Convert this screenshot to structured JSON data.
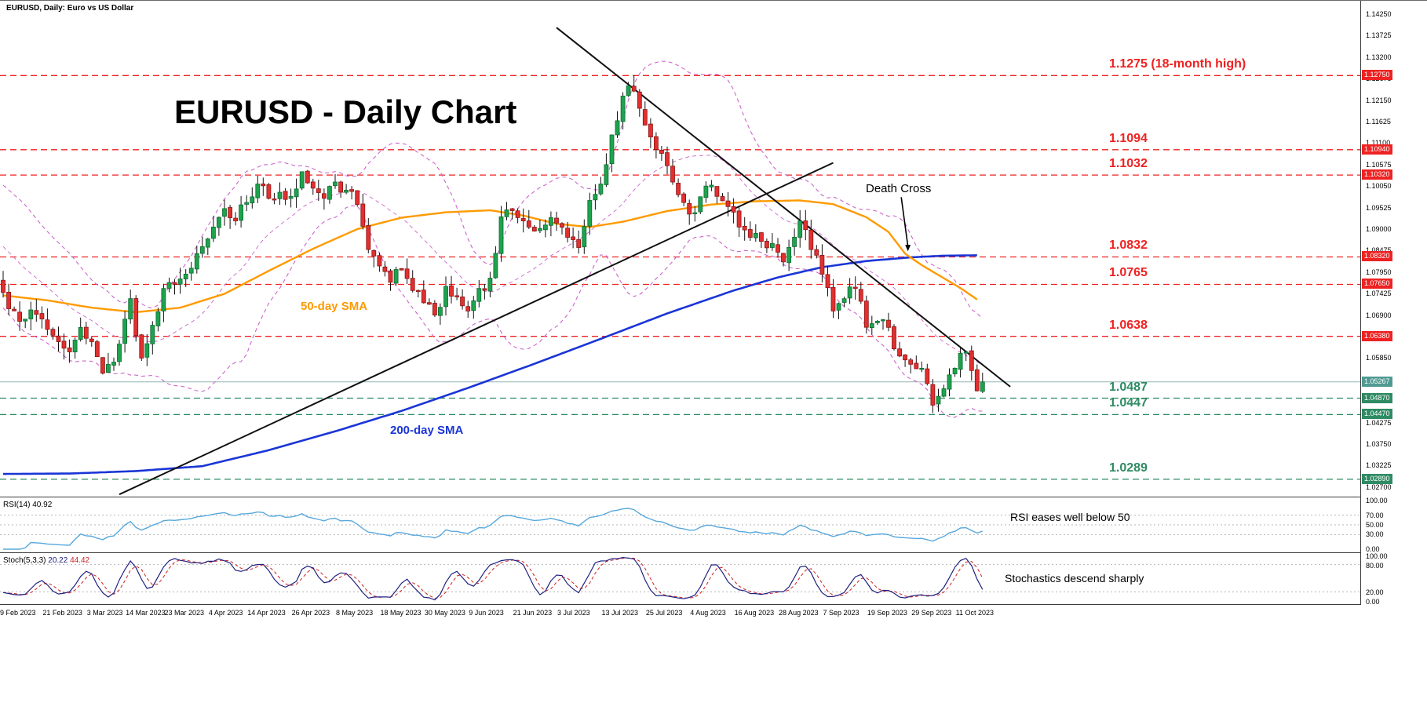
{
  "window": {
    "symbol_label": "EURUSD, Daily:  Euro vs US Dollar"
  },
  "colors": {
    "up": "#1fa24d",
    "up_border": "#0b6b31",
    "down": "#e03030",
    "down_border": "#8f1111",
    "wick": "#111111",
    "bollinger": "#cc66cc",
    "sma50": "#ff9a00",
    "sma200": "#1a35d6",
    "resistance": "#ee2222",
    "support": "#2e8b63",
    "current_line": "#8fb5b2",
    "current_badge": "#4f9a93",
    "trendline": "#101010",
    "rsi_line": "#58a8dc",
    "stoch_k": "#202080",
    "stoch_d": "#cc2222",
    "grid": "#b5b5b5",
    "panel_border": "#3c3c3c"
  },
  "chart_data": {
    "type": "candlestick",
    "symbol": "EURUSD",
    "timeframe": "Daily",
    "title_display": "EURUSD - Daily Chart",
    "sma50_label": "50-day SMA",
    "sma200_label": "200-day SMA",
    "seed": 7,
    "price_axis": {
      "min": 1.02466,
      "max": 1.14576,
      "ticks": [
        {
          "v": 1.1425,
          "t": "1.14250"
        },
        {
          "v": 1.13725,
          "t": "1.13725"
        },
        {
          "v": 1.132,
          "t": "1.13200"
        },
        {
          "v": 1.12675,
          "t": "1.12675"
        },
        {
          "v": 1.1215,
          "t": "1.12150"
        },
        {
          "v": 1.11625,
          "t": "1.11625"
        },
        {
          "v": 1.111,
          "t": "1.11100"
        },
        {
          "v": 1.10575,
          "t": "1.10575"
        },
        {
          "v": 1.1005,
          "t": "1.10050"
        },
        {
          "v": 1.09525,
          "t": "1.09525"
        },
        {
          "v": 1.09,
          "t": "1.09000"
        },
        {
          "v": 1.08475,
          "t": "1.08475"
        },
        {
          "v": 1.0795,
          "t": "1.07950"
        },
        {
          "v": 1.07425,
          "t": "1.07425"
        },
        {
          "v": 1.069,
          "t": "1.06900"
        },
        {
          "v": 1.06375,
          "t": "1.06375"
        },
        {
          "v": 1.0585,
          "t": "1.05850"
        },
        {
          "v": 1.05325,
          "t": "1.05325"
        },
        {
          "v": 1.048,
          "t": "1.04800"
        },
        {
          "v": 1.04275,
          "t": "1.04275"
        },
        {
          "v": 1.0375,
          "t": "1.03750"
        },
        {
          "v": 1.03225,
          "t": "1.03225"
        },
        {
          "v": 1.027,
          "t": "1.02700"
        }
      ]
    },
    "date_axis": [
      {
        "label": "9 Feb 2023",
        "day": 0
      },
      {
        "label": "21 Feb 2023",
        "day": 8
      },
      {
        "label": "3 Mar 2023",
        "day": 16
      },
      {
        "label": "14 Mar 2023",
        "day": 23
      },
      {
        "label": "23 Mar 2023",
        "day": 30
      },
      {
        "label": "4 Apr 2023",
        "day": 38
      },
      {
        "label": "14 Apr 2023",
        "day": 45
      },
      {
        "label": "26 Apr 2023",
        "day": 53
      },
      {
        "label": "8 May 2023",
        "day": 61
      },
      {
        "label": "18 May 2023",
        "day": 69
      },
      {
        "label": "30 May 2023",
        "day": 77
      },
      {
        "label": "9 Jun 2023",
        "day": 85
      },
      {
        "label": "21 Jun 2023",
        "day": 93
      },
      {
        "label": "3 Jul 2023",
        "day": 101
      },
      {
        "label": "13 Jul 2023",
        "day": 109
      },
      {
        "label": "25 Jul 2023",
        "day": 117
      },
      {
        "label": "4 Aug 2023",
        "day": 125
      },
      {
        "label": "16 Aug 2023",
        "day": 133
      },
      {
        "label": "28 Aug 2023",
        "day": 141
      },
      {
        "label": "7 Sep 2023",
        "day": 149
      },
      {
        "label": "19 Sep 2023",
        "day": 157
      },
      {
        "label": "29 Sep 2023",
        "day": 165
      },
      {
        "label": "11 Oct 2023",
        "day": 173
      }
    ],
    "close_waypoints": [
      [
        0,
        1.0745
      ],
      [
        2,
        1.07
      ],
      [
        4,
        1.068
      ],
      [
        6,
        1.0692
      ],
      [
        8,
        1.0655
      ],
      [
        10,
        1.0625
      ],
      [
        12,
        1.06
      ],
      [
        14,
        1.066
      ],
      [
        16,
        1.0625
      ],
      [
        18,
        1.0548
      ],
      [
        20,
        1.0575
      ],
      [
        22,
        1.068
      ],
      [
        23,
        1.073
      ],
      [
        24,
        1.064
      ],
      [
        25,
        1.0585
      ],
      [
        26,
        1.062
      ],
      [
        27,
        1.0665
      ],
      [
        29,
        1.0755
      ],
      [
        31,
        1.0765
      ],
      [
        33,
        1.079
      ],
      [
        35,
        1.084
      ],
      [
        38,
        1.0905
      ],
      [
        40,
        1.095
      ],
      [
        42,
        1.092
      ],
      [
        44,
        1.0965
      ],
      [
        46,
        1.101
      ],
      [
        48,
        1.0975
      ],
      [
        50,
        1.099
      ],
      [
        52,
        1.098
      ],
      [
        54,
        1.104
      ],
      [
        56,
        1.1
      ],
      [
        58,
        1.0975
      ],
      [
        60,
        1.1015
      ],
      [
        62,
        1.0995
      ],
      [
        64,
        1.096
      ],
      [
        66,
        1.085
      ],
      [
        68,
        1.081
      ],
      [
        70,
        1.077
      ],
      [
        72,
        1.08
      ],
      [
        74,
        1.075
      ],
      [
        76,
        1.072
      ],
      [
        78,
        1.069
      ],
      [
        80,
        1.076
      ],
      [
        82,
        1.0735
      ],
      [
        84,
        1.07
      ],
      [
        86,
        1.0755
      ],
      [
        88,
        1.078
      ],
      [
        90,
        1.093
      ],
      [
        92,
        1.0945
      ],
      [
        94,
        1.092
      ],
      [
        96,
        1.0895
      ],
      [
        98,
        1.091
      ],
      [
        100,
        1.0915
      ],
      [
        102,
        1.088
      ],
      [
        104,
        1.0855
      ],
      [
        106,
        1.097
      ],
      [
        108,
        1.101
      ],
      [
        110,
        1.113
      ],
      [
        112,
        1.1225
      ],
      [
        113,
        1.125
      ],
      [
        115,
        1.1195
      ],
      [
        117,
        1.1125
      ],
      [
        119,
        1.1085
      ],
      [
        121,
        1.1015
      ],
      [
        123,
        1.0965
      ],
      [
        125,
        1.094
      ],
      [
        127,
        1.1005
      ],
      [
        129,
        1.098
      ],
      [
        131,
        1.0955
      ],
      [
        133,
        1.0905
      ],
      [
        135,
        1.088
      ],
      [
        137,
        1.087
      ],
      [
        139,
        1.0865
      ],
      [
        141,
        1.082
      ],
      [
        143,
        1.088
      ],
      [
        144,
        1.092
      ],
      [
        146,
        1.085
      ],
      [
        148,
        1.079
      ],
      [
        150,
        1.07
      ],
      [
        152,
        1.073
      ],
      [
        154,
        1.0755
      ],
      [
        156,
        1.066
      ],
      [
        158,
        1.0675
      ],
      [
        160,
        1.066
      ],
      [
        162,
        1.059
      ],
      [
        164,
        1.057
      ],
      [
        166,
        1.056
      ],
      [
        168,
        1.047
      ],
      [
        170,
        1.051
      ],
      [
        172,
        1.056
      ],
      [
        174,
        1.06
      ],
      [
        176,
        1.0505
      ],
      [
        177,
        1.05267
      ]
    ],
    "sma50_points": [
      [
        0,
        1.0738
      ],
      [
        8,
        1.0726
      ],
      [
        16,
        1.0708
      ],
      [
        24,
        1.0697
      ],
      [
        32,
        1.0708
      ],
      [
        40,
        1.0742
      ],
      [
        48,
        1.0798
      ],
      [
        56,
        1.0852
      ],
      [
        64,
        1.09
      ],
      [
        72,
        1.0928
      ],
      [
        80,
        1.0941
      ],
      [
        88,
        1.0946
      ],
      [
        94,
        1.0933
      ],
      [
        100,
        1.0913
      ],
      [
        106,
        1.0905
      ],
      [
        112,
        1.0918
      ],
      [
        120,
        1.0944
      ],
      [
        128,
        1.096
      ],
      [
        136,
        1.0968
      ],
      [
        144,
        1.097
      ],
      [
        150,
        1.0961
      ],
      [
        156,
        1.0929
      ],
      [
        160,
        1.0893
      ],
      [
        163,
        1.084
      ],
      [
        166,
        1.0812
      ],
      [
        170,
        1.078
      ],
      [
        173,
        1.0756
      ],
      [
        176,
        1.0728
      ]
    ],
    "sma200_points": [
      [
        0,
        1.0302
      ],
      [
        12,
        1.0303
      ],
      [
        24,
        1.0309
      ],
      [
        36,
        1.0321
      ],
      [
        48,
        1.036
      ],
      [
        60,
        1.0406
      ],
      [
        72,
        1.0456
      ],
      [
        84,
        1.0512
      ],
      [
        96,
        1.0571
      ],
      [
        108,
        1.0632
      ],
      [
        120,
        1.0694
      ],
      [
        132,
        1.075
      ],
      [
        140,
        1.0782
      ],
      [
        148,
        1.0807
      ],
      [
        156,
        1.0822
      ],
      [
        164,
        1.0831
      ],
      [
        170,
        1.0835
      ],
      [
        176,
        1.0836
      ]
    ],
    "levels": {
      "resistance": [
        {
          "price": 1.1275,
          "label": "1.1275 (18-month high)",
          "axis_label": "1.12750"
        },
        {
          "price": 1.1094,
          "label": "1.1094",
          "axis_label": "1.10940"
        },
        {
          "price": 1.1032,
          "label": "1.1032",
          "axis_label": "1.10320"
        },
        {
          "price": 1.0832,
          "label": "1.0832",
          "axis_label": "1.08320"
        },
        {
          "price": 1.0765,
          "label": "1.0765",
          "axis_label": "1.07650"
        },
        {
          "price": 1.0638,
          "label": "1.0638",
          "axis_label": "1.06380"
        }
      ],
      "support": [
        {
          "price": 1.0487,
          "label": "1.0487",
          "axis_label": "1.04870"
        },
        {
          "price": 1.0447,
          "label": "1.0447",
          "axis_label": "1.04470"
        },
        {
          "price": 1.0289,
          "label": "1.0289",
          "axis_label": "1.02890"
        }
      ]
    },
    "current_price": {
      "value": 1.05267,
      "axis_label": "1.05267"
    },
    "trendlines": [
      {
        "from": [
          21,
          1.0252
        ],
        "to": [
          150,
          1.1062
        ]
      },
      {
        "from": [
          100,
          1.1392
        ],
        "to": [
          182,
          1.0515
        ]
      }
    ],
    "annotations": {
      "death_cross": "Death Cross",
      "death_cross_arrow": {
        "from": [
          162.3,
          1.0978
        ],
        "to": [
          163.5,
          1.0846
        ]
      }
    },
    "indicators": {
      "rsi": {
        "label": "RSI(14)",
        "value": "40.92",
        "note": "RSI eases well below 50",
        "axis": [
          {
            "v": 100,
            "t": "100.00"
          },
          {
            "v": 70,
            "t": "70.00"
          },
          {
            "v": 50,
            "t": "50.00"
          },
          {
            "v": 30,
            "t": "30.00"
          },
          {
            "v": 0,
            "t": "0.00"
          }
        ],
        "gridlines": [
          70,
          50,
          30
        ]
      },
      "stoch": {
        "label": "Stoch(5,3,3)",
        "k": "20.22",
        "d": "44.42",
        "note": "Stochastics descend sharply",
        "axis": [
          {
            "v": 100,
            "t": "100.00"
          },
          {
            "v": 80,
            "t": "80.00"
          },
          {
            "v": 20,
            "t": "20.00"
          },
          {
            "v": 0,
            "t": "0.00"
          }
        ],
        "gridlines": [
          80,
          20
        ]
      }
    }
  }
}
